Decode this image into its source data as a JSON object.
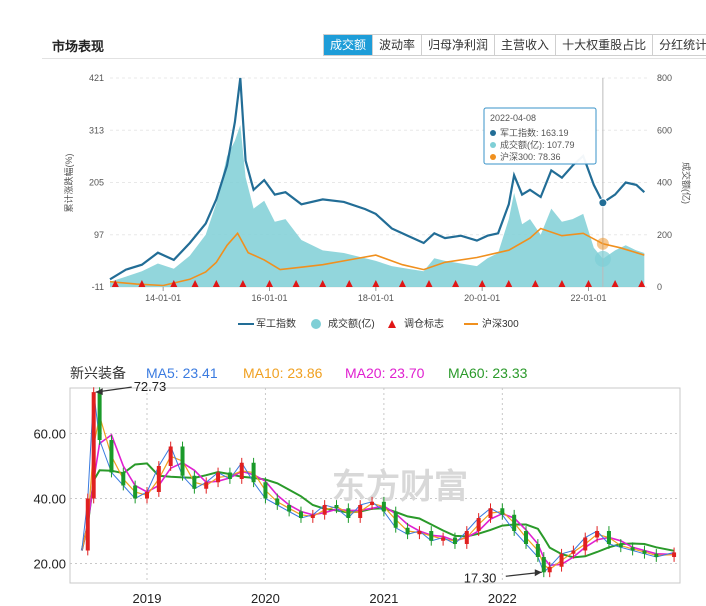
{
  "panel1": {
    "title": "市场表现",
    "tabs": [
      "成交额",
      "波动率",
      "归母净利润",
      "主营收入",
      "十大权重股占比",
      "分红统计"
    ],
    "active_tab": 0
  },
  "chart_data": [
    {
      "type": "line",
      "y_left_label": "累计涨跌幅(%)",
      "y_right_label": "成交额(亿)",
      "y_left_ticks": [
        "421",
        "313",
        "205",
        "97",
        "-11"
      ],
      "y_right_ticks": [
        "800",
        "600",
        "400",
        "200",
        "0"
      ],
      "x_ticks": [
        "14-01-01",
        "16-01-01",
        "18-01-01",
        "20-01-01",
        "22-01-01"
      ],
      "legend": [
        "军工指数",
        "成交额(亿)",
        "调仓标志",
        "沪深300"
      ],
      "colors": {
        "junggong": "#226d96",
        "volume": "#7fcfd6",
        "marker": "#e01616",
        "hs300": "#f0901e"
      },
      "series": [
        {
          "name": "军工指数",
          "x": [
            2013.0,
            2013.3,
            2013.6,
            2013.9,
            2014.2,
            2014.5,
            2014.8,
            2015.0,
            2015.2,
            2015.35,
            2015.45,
            2015.55,
            2015.7,
            2015.9,
            2016.1,
            2016.3,
            2016.6,
            2017.0,
            2017.4,
            2017.8,
            2018.0,
            2018.3,
            2018.6,
            2018.9,
            2019.1,
            2019.3,
            2019.6,
            2019.9,
            2020.1,
            2020.3,
            2020.5,
            2020.6,
            2020.75,
            2020.9,
            2021.1,
            2021.3,
            2021.5,
            2021.7,
            2021.9,
            2022.1,
            2022.27,
            2022.5,
            2022.7,
            2022.9,
            2023.05
          ],
          "y": [
            5,
            25,
            35,
            60,
            45,
            80,
            120,
            170,
            240,
            330,
            421,
            250,
            190,
            210,
            180,
            185,
            160,
            170,
            165,
            150,
            140,
            110,
            95,
            80,
            100,
            90,
            95,
            85,
            95,
            100,
            160,
            220,
            180,
            190,
            175,
            230,
            215,
            240,
            260,
            200,
            163.19,
            180,
            205,
            200,
            185
          ]
        },
        {
          "name": "成交额(亿)",
          "x": [
            2013.0,
            2013.3,
            2013.6,
            2013.9,
            2014.2,
            2014.5,
            2014.8,
            2015.0,
            2015.2,
            2015.35,
            2015.45,
            2015.55,
            2015.7,
            2015.9,
            2016.1,
            2016.3,
            2016.6,
            2017.0,
            2017.4,
            2017.8,
            2018.0,
            2018.3,
            2018.6,
            2018.9,
            2019.1,
            2019.3,
            2019.6,
            2019.9,
            2020.1,
            2020.3,
            2020.5,
            2020.6,
            2020.75,
            2020.9,
            2021.1,
            2021.3,
            2021.5,
            2021.7,
            2021.9,
            2022.1,
            2022.27,
            2022.5,
            2022.7,
            2022.9,
            2023.05
          ],
          "y": [
            20,
            40,
            60,
            90,
            70,
            120,
            200,
            320,
            500,
            560,
            620,
            420,
            300,
            330,
            250,
            260,
            180,
            140,
            130,
            110,
            100,
            80,
            70,
            60,
            110,
            100,
            90,
            80,
            110,
            130,
            260,
            360,
            240,
            260,
            200,
            300,
            250,
            260,
            280,
            150,
            107.79,
            140,
            160,
            140,
            130
          ]
        },
        {
          "name": "沪深300",
          "x": [
            2013.0,
            2013.5,
            2014.0,
            2014.5,
            2014.8,
            2015.0,
            2015.2,
            2015.4,
            2015.6,
            2015.9,
            2016.2,
            2016.6,
            2017.0,
            2017.5,
            2018.0,
            2018.5,
            2018.9,
            2019.3,
            2019.9,
            2020.5,
            2020.9,
            2021.1,
            2021.5,
            2021.9,
            2022.27,
            2022.6,
            2022.9,
            2023.05
          ],
          "y": [
            0,
            -5,
            -8,
            5,
            20,
            40,
            75,
            100,
            60,
            45,
            25,
            30,
            35,
            45,
            55,
            35,
            25,
            40,
            50,
            65,
            90,
            110,
            95,
            100,
            78.36,
            70,
            60,
            55
          ]
        }
      ],
      "markers_x": [
        2013.1,
        2013.6,
        2014.2,
        2014.6,
        2015.0,
        2015.5,
        2016.0,
        2016.5,
        2017.0,
        2017.5,
        2018.0,
        2018.5,
        2019.0,
        2019.5,
        2020.0,
        2020.5,
        2021.0,
        2021.5,
        2022.0,
        2022.5,
        2023.0
      ],
      "tooltip": {
        "date": "2022-04-08",
        "rows": [
          "军工指数: 163.19",
          "成交额(亿): 107.79",
          "沪深300: 78.36"
        ]
      }
    },
    {
      "type": "line",
      "title": "新兴装备",
      "ma": [
        {
          "label": "MA5: 23.41",
          "color": "#3a7be0"
        },
        {
          "label": "MA10: 23.86",
          "color": "#f0a020"
        },
        {
          "label": "MA20: 23.70",
          "color": "#e020d0"
        },
        {
          "label": "MA60: 23.33",
          "color": "#2a9a2a"
        }
      ],
      "y_ticks": [
        "60.00",
        "40.00",
        "20.00"
      ],
      "x_ticks": [
        "2019",
        "2020",
        "2021",
        "2022"
      ],
      "annotations": [
        "72.73",
        "17.30"
      ],
      "watermark": "东方财富",
      "series": [
        {
          "name": "price",
          "x": [
            2018.45,
            2018.5,
            2018.55,
            2018.6,
            2018.7,
            2018.8,
            2018.9,
            2019.0,
            2019.1,
            2019.2,
            2019.3,
            2019.4,
            2019.5,
            2019.6,
            2019.7,
            2019.8,
            2019.9,
            2020.0,
            2020.1,
            2020.2,
            2020.3,
            2020.4,
            2020.5,
            2020.6,
            2020.7,
            2020.8,
            2020.9,
            2021.0,
            2021.1,
            2021.2,
            2021.3,
            2021.4,
            2021.5,
            2021.6,
            2021.7,
            2021.8,
            2021.9,
            2022.0,
            2022.1,
            2022.2,
            2022.3,
            2022.35,
            2022.4,
            2022.5,
            2022.6,
            2022.7,
            2022.8,
            2022.9,
            2023.0,
            2023.1,
            2023.2,
            2023.3,
            2023.45
          ],
          "y": [
            24,
            40,
            72.73,
            58,
            48,
            44,
            40,
            42,
            50,
            56,
            47,
            43,
            45,
            48,
            46,
            51,
            45,
            40,
            38,
            36,
            34,
            35,
            38,
            37,
            34,
            38,
            39,
            36,
            31,
            29,
            30,
            27,
            28,
            26,
            30,
            34,
            37,
            35,
            30,
            26,
            22,
            17.3,
            19,
            23,
            24,
            28,
            30,
            26,
            25,
            24,
            23,
            22,
            23.41
          ]
        }
      ]
    }
  ]
}
